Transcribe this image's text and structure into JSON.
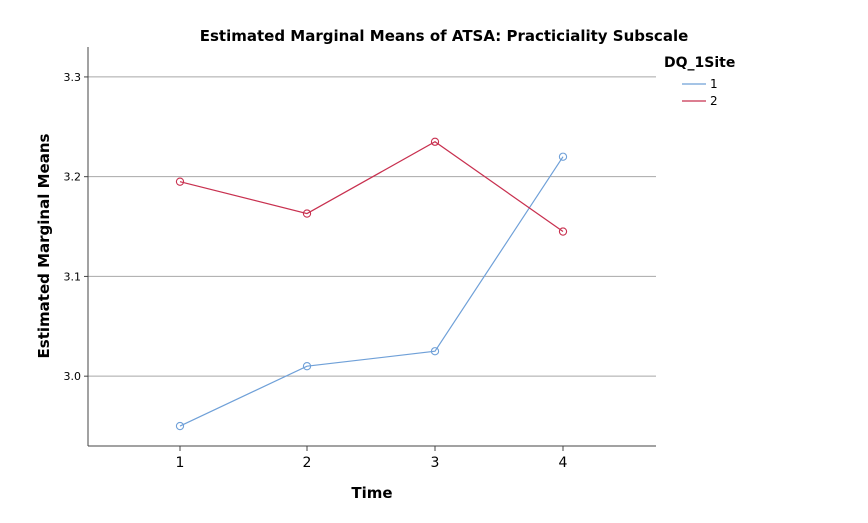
{
  "chart_data": {
    "type": "line",
    "title": "Estimated Marginal Means of ATSA: Practiciality Subscale",
    "xlabel": "Time",
    "ylabel": "Estimated Marginal Means",
    "categories": [
      "1",
      "2",
      "3",
      "4"
    ],
    "ylim": [
      2.93,
      3.33
    ],
    "yticks": [
      "3.0",
      "3.1",
      "3.2",
      "3.3"
    ],
    "grid": true,
    "legend": {
      "title": "DQ_1Site",
      "position": "top-right"
    },
    "series": [
      {
        "name": "1",
        "color": "#6fa0d8",
        "values": [
          2.95,
          3.01,
          3.025,
          3.22
        ]
      },
      {
        "name": "2",
        "color": "#c8304f",
        "values": [
          3.195,
          3.163,
          3.235,
          3.145
        ]
      }
    ]
  }
}
